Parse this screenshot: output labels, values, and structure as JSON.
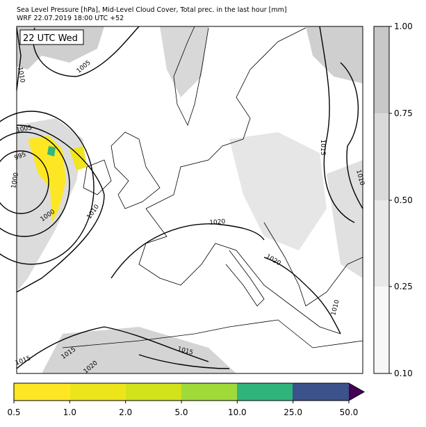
{
  "header": {
    "title": "Sea Level Pressure [hPa], Mid-Level Cloud Cover, Total prec. in the last hour [mm]",
    "subtitle": "WRF 22.07.2019 18:00 UTC +52"
  },
  "map": {
    "time_label": "22 UTC Wed",
    "isobar_labels": [
      "1010",
      "1005",
      "1005",
      "995",
      "1000",
      "1010",
      "1020",
      "1015",
      "1010",
      "1020",
      "1010",
      "1015",
      "1015",
      "1020",
      "1015",
      "1000"
    ]
  },
  "cloud_colorbar": {
    "ticks": [
      "0.10",
      "0.25",
      "0.50",
      "0.75",
      "1.00"
    ]
  },
  "precip_colorbar": {
    "ticks": [
      "0.5",
      "1.0",
      "2.0",
      "5.0",
      "10.0",
      "25.0",
      "50.0"
    ]
  }
}
